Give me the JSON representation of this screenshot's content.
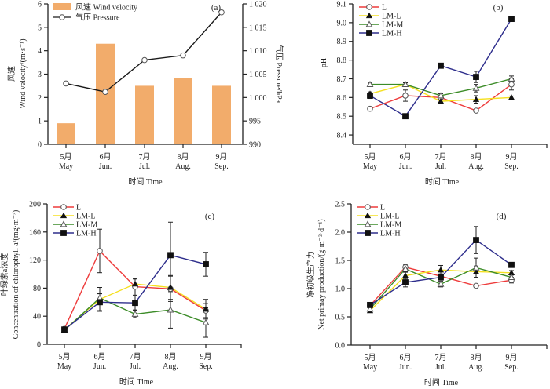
{
  "chart_data": [
    {
      "panel": "(a)",
      "type": "bar",
      "categories": [
        "May",
        "Jun.",
        "Jul.",
        "Aug.",
        "Sep."
      ],
      "categories_cn": [
        "5月",
        "6月",
        "7月",
        "8月",
        "9月"
      ],
      "xlabel": "时间 Time",
      "ylabel": "风速 Wind velocity/(m·s⁻¹)",
      "ylabel_cn": "风速",
      "ylabel_en": "Wind velocity/(m·s⁻¹)",
      "ylim": [
        0,
        6
      ],
      "yticks": [
        0,
        1,
        2,
        3,
        4,
        5,
        6
      ],
      "y2label": "气压 Pressure/hPa",
      "y2lim": [
        990,
        1020
      ],
      "y2ticks": [
        990,
        995,
        1000,
        1005,
        1010,
        1015,
        1020
      ],
      "y2ticklabels": [
        "990",
        "995",
        "1 000",
        "1 005",
        "1 010",
        "1 015",
        "1 020"
      ],
      "legend": "top-left",
      "series": [
        {
          "name": "风速 Wind velocity",
          "kind": "bar",
          "axis": "left",
          "color": "#f2ac6b",
          "values": [
            0.9,
            4.3,
            2.5,
            2.83,
            2.5
          ]
        },
        {
          "name": "气压 Pressure",
          "kind": "line",
          "axis": "right",
          "color": "#1a1a1a",
          "marker": "open-circle",
          "values": [
            1003.0,
            1001.2,
            1008.0,
            1009.0,
            1018.2
          ]
        }
      ]
    },
    {
      "panel": "(b)",
      "type": "line",
      "categories": [
        "May",
        "Jun.",
        "Jul.",
        "Aug.",
        "Sep."
      ],
      "categories_cn": [
        "5月",
        "6月",
        "7月",
        "8月",
        "9月"
      ],
      "xlabel": "时间 Time",
      "ylabel": "pH",
      "ylim": [
        8.35,
        9.1
      ],
      "yticks": [
        8.4,
        8.5,
        8.6,
        8.7,
        8.8,
        8.9,
        9.0,
        9.1
      ],
      "yticklabels": [
        "8.4",
        "8.5",
        "8.6",
        "8.7",
        "8.8",
        "8.9",
        "9.0",
        "9.1"
      ],
      "legend": "top-left",
      "series": [
        {
          "name": "L",
          "color": "#ee3b3b",
          "marker": "open-circle",
          "values": [
            8.54,
            8.61,
            8.6,
            8.53,
            8.67
          ],
          "err": [
            0.008,
            0.03,
            0.01,
            0.008,
            0.03
          ]
        },
        {
          "name": "LM-L",
          "color": "#f5e020",
          "marker": "filled-triangle",
          "values": [
            8.62,
            8.67,
            8.58,
            8.59,
            8.6
          ],
          "err": [
            0.01,
            0.01,
            0.008,
            0.02,
            0.008
          ]
        },
        {
          "name": "LM-M",
          "color": "#3c8c28",
          "marker": "open-triangle",
          "values": [
            8.67,
            8.67,
            8.61,
            8.65,
            8.7
          ],
          "err": [
            0.01,
            0.008,
            0.01,
            0.02,
            0.015
          ]
        },
        {
          "name": "LM-H",
          "color": "#2e2e8c",
          "marker": "filled-square",
          "values": [
            8.61,
            8.5,
            8.77,
            8.71,
            9.02
          ],
          "err": [
            0.015,
            0.005,
            0.005,
            0.03,
            0.01
          ]
        }
      ]
    },
    {
      "panel": "(c)",
      "type": "line",
      "categories": [
        "May",
        "Jun.",
        "Jul.",
        "Aug.",
        "Sep."
      ],
      "categories_cn": [
        "5月",
        "6月",
        "7月",
        "8月",
        "9月"
      ],
      "xlabel": "时间 Time",
      "ylabel": "叶绿素a浓度 Concentration of chlorophyll a/(mg·m⁻³)",
      "ylabel_cn": "叶绿素a浓度",
      "ylabel_en": "Concentration of chlorophyll a/(mg·m⁻³)",
      "ylim": [
        0,
        200
      ],
      "yticks": [
        0,
        40,
        80,
        120,
        160,
        200
      ],
      "yticklabels": [
        "0",
        "40",
        "80",
        "120",
        "160",
        "200"
      ],
      "legend": "top-left",
      "series": [
        {
          "name": "L",
          "color": "#ee3b3b",
          "marker": "open-circle",
          "values": [
            22,
            133,
            82,
            79,
            48
          ],
          "err": [
            2,
            31,
            12,
            18,
            10
          ]
        },
        {
          "name": "LM-L",
          "color": "#f5e020",
          "marker": "filled-triangle",
          "values": [
            21,
            64,
            86,
            81,
            50
          ],
          "err": [
            2,
            17,
            7,
            17,
            14
          ]
        },
        {
          "name": "LM-M",
          "color": "#3c8c28",
          "marker": "open-triangle",
          "values": [
            20,
            66,
            43,
            49,
            31
          ],
          "err": [
            2,
            6,
            5,
            26,
            21
          ]
        },
        {
          "name": "LM-H",
          "color": "#2e2e8c",
          "marker": "filled-square",
          "values": [
            21,
            60,
            59,
            127,
            114
          ],
          "err": [
            2,
            12,
            10,
            47,
            17
          ]
        }
      ]
    },
    {
      "panel": "(d)",
      "type": "line",
      "categories": [
        "May",
        "Jun.",
        "Jul.",
        "Aug.",
        "Sep."
      ],
      "categories_cn": [
        "5月",
        "6月",
        "7月",
        "8月",
        "9月"
      ],
      "xlabel": "时间 Time",
      "ylabel": "净初级生产力 Net primay production/(g·m⁻²·d⁻¹)",
      "ylabel_cn": "净初级生产力",
      "ylabel_en": "Net primay production/(g·m⁻²·d⁻¹)",
      "ylim": [
        0,
        2.5
      ],
      "yticks": [
        0,
        0.5,
        1.0,
        1.5,
        2.0,
        2.5
      ],
      "yticklabels": [
        "0.0",
        "0.5",
        "1.0",
        "1.5",
        "2.0",
        "2.5"
      ],
      "legend": "top-left",
      "series": [
        {
          "name": "L",
          "color": "#ee3b3b",
          "marker": "open-circle",
          "values": [
            0.7,
            1.38,
            1.22,
            1.05,
            1.15
          ],
          "err": [
            0.02,
            0.05,
            0.04,
            0.03,
            0.05
          ]
        },
        {
          "name": "LM-L",
          "color": "#f5e020",
          "marker": "filled-triangle",
          "values": [
            0.61,
            1.23,
            1.33,
            1.3,
            1.28
          ],
          "err": [
            0.02,
            0.06,
            0.08,
            0.1,
            0.04
          ]
        },
        {
          "name": "LM-M",
          "color": "#3c8c28",
          "marker": "open-triangle",
          "values": [
            0.64,
            1.35,
            1.08,
            1.37,
            1.2
          ],
          "err": [
            0.02,
            0.05,
            0.05,
            0.17,
            0.04
          ]
        },
        {
          "name": "LM-H",
          "color": "#2e2e8c",
          "marker": "filled-square",
          "values": [
            0.71,
            1.11,
            1.2,
            1.86,
            1.42
          ],
          "err": [
            0.02,
            0.08,
            0.05,
            0.24,
            0.04
          ]
        }
      ]
    }
  ]
}
